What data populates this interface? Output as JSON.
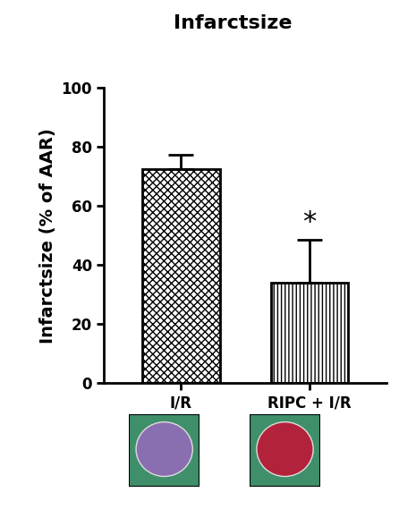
{
  "chart_data": {
    "type": "bar",
    "title": "Infarctsize",
    "y_label": "Infarctsize (% of AAR)",
    "categories": [
      "I/R",
      "RIPC + I/R"
    ],
    "values": [
      72.5,
      34
    ],
    "error_upper": [
      5,
      14.5
    ],
    "colors": [
      "#ffffff",
      "#ffffff"
    ],
    "ylim": [
      0,
      100
    ],
    "yticks": [
      0,
      20,
      40,
      60,
      80,
      100
    ],
    "annotations": [
      {
        "text": "*",
        "category": "RIPC + I/R"
      }
    ]
  }
}
